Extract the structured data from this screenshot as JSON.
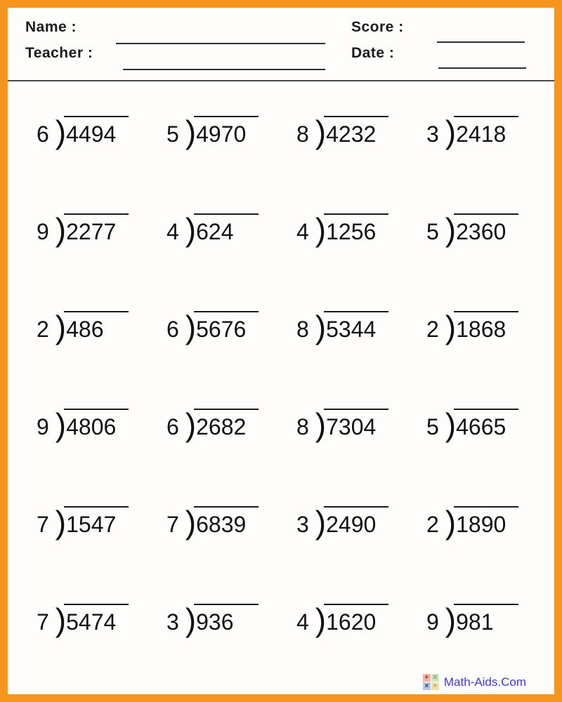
{
  "page": {
    "background": "#fefdfc",
    "border_color": "#f7941e",
    "divider_color": "#4a4a4a"
  },
  "header": {
    "name_label": "Name :",
    "teacher_label": "Teacher :",
    "score_label": "Score :",
    "date_label": "Date :"
  },
  "problems": {
    "bracket_glyph": ")",
    "list": [
      {
        "divisor": "6",
        "dividend": "4494"
      },
      {
        "divisor": "5",
        "dividend": "4970"
      },
      {
        "divisor": "8",
        "dividend": "4232"
      },
      {
        "divisor": "3",
        "dividend": "2418"
      },
      {
        "divisor": "9",
        "dividend": "2277"
      },
      {
        "divisor": "4",
        "dividend": "624"
      },
      {
        "divisor": "4",
        "dividend": "1256"
      },
      {
        "divisor": "5",
        "dividend": "2360"
      },
      {
        "divisor": "2",
        "dividend": "486"
      },
      {
        "divisor": "6",
        "dividend": "5676"
      },
      {
        "divisor": "8",
        "dividend": "5344"
      },
      {
        "divisor": "2",
        "dividend": "1868"
      },
      {
        "divisor": "9",
        "dividend": "4806"
      },
      {
        "divisor": "6",
        "dividend": "2682"
      },
      {
        "divisor": "8",
        "dividend": "7304"
      },
      {
        "divisor": "5",
        "dividend": "4665"
      },
      {
        "divisor": "7",
        "dividend": "1547"
      },
      {
        "divisor": "7",
        "dividend": "6839"
      },
      {
        "divisor": "3",
        "dividend": "2490"
      },
      {
        "divisor": "2",
        "dividend": "1890"
      },
      {
        "divisor": "7",
        "dividend": "5474"
      },
      {
        "divisor": "3",
        "dividend": "936"
      },
      {
        "divisor": "4",
        "dividend": "1620"
      },
      {
        "divisor": "9",
        "dividend": "981"
      }
    ]
  },
  "footer": {
    "brand": "Math-Aids.Com",
    "brand_color": "#3a3ac8",
    "icon_cells": [
      {
        "name": "plus-icon",
        "symbol": "+",
        "bg": "#f0b4aa",
        "fg": "#c42410"
      },
      {
        "name": "equals-icon",
        "symbol": "=",
        "bg": "#cfe6c4",
        "fg": "#3f9c3f"
      },
      {
        "name": "times-icon",
        "symbol": "×",
        "bg": "#b4c8e6",
        "fg": "#1e3a78"
      },
      {
        "name": "divide-icon",
        "symbol": "÷",
        "bg": "#f0e2a6",
        "fg": "#b09428"
      }
    ]
  }
}
